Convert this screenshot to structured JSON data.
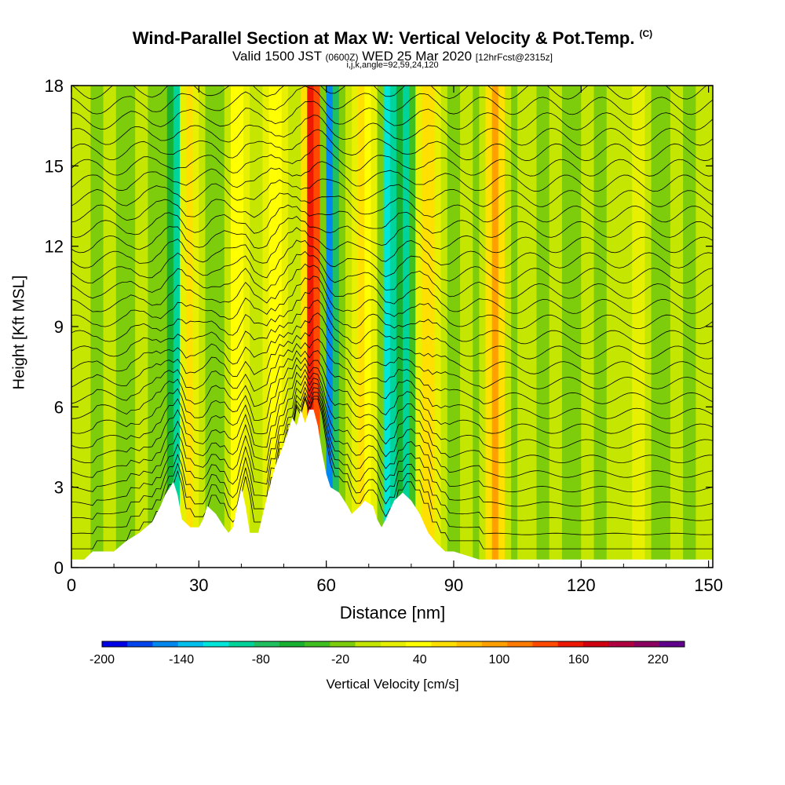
{
  "header": {
    "title": "Wind-Parallel Section at Max W: Vertical Velocity & Pot.Temp.",
    "title_mark": "(C)",
    "valid_a": "Valid 1500 JST",
    "valid_zulu": "(0600Z)",
    "valid_b": "WED 25 Mar 2020",
    "forecast": "[12hrFcst@2315z]",
    "indices": "i,j,k,angle=92,59,24,120"
  },
  "chart_data": {
    "type": "heatmap",
    "title": "Wind-Parallel Section at Max W: Vertical Velocity & Pot.Temp.",
    "xlabel": "Distance [nm]",
    "ylabel": "Height [Kft MSL]",
    "xlim": [
      0,
      151
    ],
    "ylim": [
      0,
      18
    ],
    "x_ticks": [
      0,
      30,
      60,
      90,
      120,
      150
    ],
    "y_ticks": [
      0,
      3,
      6,
      9,
      12,
      15,
      18
    ],
    "colorbar": {
      "label": "Vertical Velocity [cm/s]",
      "tick_labels": [
        "-200",
        "-140",
        "-80",
        "-20",
        "40",
        "100",
        "160",
        "220"
      ],
      "tick_values": [
        -200,
        -140,
        -80,
        -20,
        40,
        100,
        160,
        220
      ],
      "levels": [
        -200,
        -180,
        -160,
        -140,
        -120,
        -100,
        -80,
        -60,
        -40,
        -20,
        0,
        20,
        40,
        60,
        80,
        100,
        120,
        140,
        160,
        180,
        200,
        220,
        240
      ],
      "colors": [
        "#0000e6",
        "#0044ee",
        "#0088ee",
        "#00c0ee",
        "#00e6d8",
        "#00d49a",
        "#20c060",
        "#18b030",
        "#40c020",
        "#7ecd0c",
        "#c4e600",
        "#e6f000",
        "#ffff00",
        "#ffe000",
        "#ffc000",
        "#ffa000",
        "#ff7a00",
        "#ff4a00",
        "#ee1800",
        "#d00010",
        "#b00040",
        "#8c0060",
        "#60008c"
      ]
    },
    "terrain_profile_kft": [
      [
        0,
        0.3
      ],
      [
        3,
        0.3
      ],
      [
        5,
        0.6
      ],
      [
        10,
        0.6
      ],
      [
        13,
        1.0
      ],
      [
        16,
        1.3
      ],
      [
        19,
        1.7
      ],
      [
        21,
        2.3
      ],
      [
        22,
        2.7
      ],
      [
        24,
        3.2
      ],
      [
        25,
        2.7
      ],
      [
        26,
        1.8
      ],
      [
        28,
        1.5
      ],
      [
        30,
        1.5
      ],
      [
        31,
        1.8
      ],
      [
        32,
        2.3
      ],
      [
        34,
        2.0
      ],
      [
        36,
        1.5
      ],
      [
        37,
        1.3
      ],
      [
        38,
        1.5
      ],
      [
        39,
        2.3
      ],
      [
        40,
        3.0
      ],
      [
        41,
        2.3
      ],
      [
        42,
        1.3
      ],
      [
        44,
        1.3
      ],
      [
        46,
        2.6
      ],
      [
        48,
        3.8
      ],
      [
        50,
        4.6
      ],
      [
        52,
        5.6
      ],
      [
        53,
        5.3
      ],
      [
        54,
        5.9
      ],
      [
        55,
        5.4
      ],
      [
        56,
        5.9
      ],
      [
        57,
        5.9
      ],
      [
        58,
        5.3
      ],
      [
        59,
        4.3
      ],
      [
        60,
        3.5
      ],
      [
        61,
        3.0
      ],
      [
        63,
        2.8
      ],
      [
        65,
        2.3
      ],
      [
        66,
        2.0
      ],
      [
        68,
        2.3
      ],
      [
        69,
        2.5
      ],
      [
        71,
        2.3
      ],
      [
        72,
        1.8
      ],
      [
        73,
        1.5
      ],
      [
        74,
        1.8
      ],
      [
        76,
        2.5
      ],
      [
        78,
        2.8
      ],
      [
        80,
        2.5
      ],
      [
        82,
        2.0
      ],
      [
        84,
        1.3
      ],
      [
        86,
        0.9
      ],
      [
        88,
        0.6
      ],
      [
        90,
        0.6
      ],
      [
        96,
        0.3
      ],
      [
        100,
        0.3
      ],
      [
        151,
        0.3
      ]
    ],
    "updraft_bands": [
      {
        "x": 26,
        "w_cm_s": 90
      },
      {
        "x": 39,
        "w_cm_s": 60
      },
      {
        "x": 47,
        "w_cm_s": 60
      },
      {
        "x": 56,
        "w_cm_s": 180
      },
      {
        "x": 68,
        "w_cm_s": 80
      },
      {
        "x": 83,
        "w_cm_s": 80
      },
      {
        "x": 99,
        "w_cm_s": 100
      },
      {
        "x": 132,
        "w_cm_s": 40
      }
    ],
    "downdraft_bands": [
      {
        "x": 24,
        "w_cm_s": -140
      },
      {
        "x": 60,
        "w_cm_s": -160
      },
      {
        "x": 74,
        "w_cm_s": -120
      },
      {
        "x": 78,
        "w_cm_s": -100
      }
    ]
  }
}
